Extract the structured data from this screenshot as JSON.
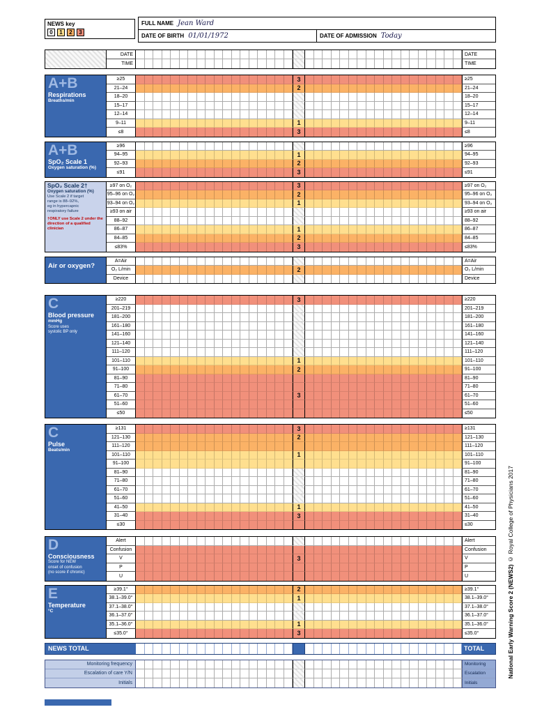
{
  "header": {
    "news_key_label": "NEWS key",
    "key_values": [
      "0",
      "1",
      "2",
      "3"
    ],
    "full_name_label": "FULL NAME",
    "full_name_value": "Jean Ward",
    "dob_label": "DATE OF BIRTH",
    "dob_value": "01/01/1972",
    "admission_label": "DATE OF ADMISSION",
    "admission_value": "Today"
  },
  "grid": {
    "date_label": "DATE",
    "time_label": "TIME",
    "columns_per_side": 18
  },
  "colors": {
    "score1": "#FFDF8F",
    "score2": "#FBB266",
    "score3": "#F1907B",
    "header_blue": "#3A68AF",
    "light_block_blue": "#C9D3EB",
    "footer_label_bg": "#C3CFE8",
    "footer_right_bg": "#93A9D4"
  },
  "sections": [
    {
      "id": "respirations",
      "variant": "blue",
      "letter": "A+B",
      "title": "Respirations",
      "subtitle": "Breaths/min",
      "rows": [
        {
          "label": "≥25",
          "score": 3,
          "show": "3"
        },
        {
          "label": "21–24",
          "score": 2,
          "show": "2"
        },
        {
          "label": "18–20",
          "score": 0
        },
        {
          "label": "15–17",
          "score": 0
        },
        {
          "label": "12–14",
          "score": 0
        },
        {
          "label": "9–11",
          "score": 1,
          "show": "1"
        },
        {
          "label": "≤8",
          "score": 3,
          "show": "3"
        }
      ]
    },
    {
      "id": "spo2-scale-1",
      "variant": "blue",
      "letter": "A+B",
      "title": "SpO₂ Scale 1",
      "subtitle": "Oxygen saturation (%)",
      "rows": [
        {
          "label": "≥96",
          "score": 0
        },
        {
          "label": "94–95",
          "score": 1,
          "show": "1"
        },
        {
          "label": "92–93",
          "score": 2,
          "show": "2"
        },
        {
          "label": "≤91",
          "score": 3,
          "show": "3"
        }
      ]
    },
    {
      "id": "spo2-scale-2",
      "variant": "light",
      "title": "SpO₂ Scale 2†",
      "subtitle": "Oxygen saturation (%)",
      "notes": [
        "Use Scale 2 if target",
        "range is 88–92%,",
        "eg in hypercapnic",
        "respiratory failure"
      ],
      "warning": "†ONLY use Scale 2 under the direction of a qualified clinician",
      "rows": [
        {
          "label": "≥97 on O₂",
          "score": 3,
          "show": "3"
        },
        {
          "label": "95–96 on O₂",
          "score": 2,
          "show": "2"
        },
        {
          "label": "93–94 on O₂",
          "score": 1,
          "show": "1"
        },
        {
          "label": "≥93 on air",
          "score": 0
        },
        {
          "label": "88–92",
          "score": 0
        },
        {
          "label": "86–87",
          "score": 1,
          "show": "1"
        },
        {
          "label": "84–85",
          "score": 2,
          "show": "2"
        },
        {
          "label": "≤83%",
          "score": 3,
          "show": "3"
        }
      ]
    },
    {
      "id": "air-or-oxygen",
      "variant": "blue-plain",
      "title": "Air or oxygen?",
      "rows": [
        {
          "label": "A=Air",
          "score": 0
        },
        {
          "label": "O₂ L/min",
          "score": 2,
          "show": "2"
        },
        {
          "label": "Device",
          "score": 0
        }
      ]
    },
    {
      "id": "blood-pressure",
      "variant": "blue",
      "letter": "C",
      "title": "Blood pressure",
      "subtitle": "mmHg",
      "notes": [
        "Score uses",
        "systolic BP only"
      ],
      "rows": [
        {
          "label": "≥220",
          "score": 3,
          "show": "3"
        },
        {
          "label": "201–219",
          "score": 0
        },
        {
          "label": "181–200",
          "score": 0
        },
        {
          "label": "161–180",
          "score": 0
        },
        {
          "label": "141–160",
          "score": 0
        },
        {
          "label": "121–140",
          "score": 0
        },
        {
          "label": "111–120",
          "score": 0
        },
        {
          "label": "101–110",
          "score": 1,
          "show": "1"
        },
        {
          "label": "91–100",
          "score": 2,
          "show": "2"
        },
        {
          "label": "81–90",
          "score": 3
        },
        {
          "label": "71–80",
          "score": 3
        },
        {
          "label": "61–70",
          "score": 3,
          "show": "3"
        },
        {
          "label": "51–60",
          "score": 3
        },
        {
          "label": "≤50",
          "score": 3
        }
      ]
    },
    {
      "id": "pulse",
      "variant": "blue",
      "letter": "C",
      "title": "Pulse",
      "subtitle": "Beats/min",
      "rows": [
        {
          "label": "≥131",
          "score": 3,
          "show": "3"
        },
        {
          "label": "121–130",
          "score": 2,
          "show": "2"
        },
        {
          "label": "111–120",
          "score": 2
        },
        {
          "label": "101–110",
          "score": 1,
          "show": "1"
        },
        {
          "label": "91–100",
          "score": 1
        },
        {
          "label": "81–90",
          "score": 0
        },
        {
          "label": "71–80",
          "score": 0
        },
        {
          "label": "61–70",
          "score": 0
        },
        {
          "label": "51–60",
          "score": 0
        },
        {
          "label": "41–50",
          "score": 1,
          "show": "1"
        },
        {
          "label": "31–40",
          "score": 3,
          "show": "3"
        },
        {
          "label": "≤30",
          "score": 3
        }
      ]
    },
    {
      "id": "consciousness",
      "variant": "blue",
      "letter": "D",
      "title": "Consciousness",
      "notes": [
        "Score for NEW",
        "onset of confusion",
        "(no score if chronic)"
      ],
      "rows": [
        {
          "label": "Alert",
          "score": 0
        },
        {
          "label": "Confusion",
          "score": 3
        },
        {
          "label": "V",
          "score": 3,
          "show": "3"
        },
        {
          "label": "P",
          "score": 3
        },
        {
          "label": "U",
          "score": 3
        }
      ]
    },
    {
      "id": "temperature",
      "variant": "blue",
      "letter": "E",
      "title": "Temperature",
      "subtitle": "°C",
      "rows": [
        {
          "label": "≥39.1°",
          "score": 2,
          "show": "2"
        },
        {
          "label": "38.1–39.0°",
          "score": 1,
          "show": "1"
        },
        {
          "label": "37.1–38.0°",
          "score": 0
        },
        {
          "label": "36.1–37.0°",
          "score": 0
        },
        {
          "label": "35.1–36.0°",
          "score": 1,
          "show": "1"
        },
        {
          "label": "≤35.0°",
          "score": 3,
          "show": "3"
        }
      ]
    }
  ],
  "totals": {
    "left_label": "NEWS TOTAL",
    "right_label": "TOTAL"
  },
  "footer": {
    "rows": [
      {
        "label": "Monitoring frequency",
        "right_label": "Monitoring"
      },
      {
        "label": "Escalation of care Y/N",
        "right_label": "Escalation"
      },
      {
        "label": "Initials",
        "right_label": "Initials"
      }
    ]
  },
  "copyright": {
    "bold": "National Early Warning Score 2 (NEWS2) ",
    "rest": "© Royal College of Physicians 2017"
  }
}
